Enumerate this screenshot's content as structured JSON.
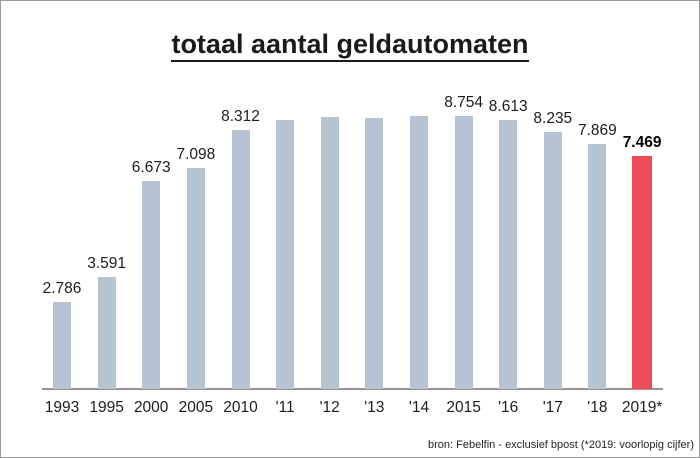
{
  "chart_data": {
    "type": "bar",
    "title": "totaal aantal geldautomaten",
    "categories": [
      "1993",
      "1995",
      "2000",
      "2005",
      "2010",
      "'11",
      "'12",
      "'13",
      "'14",
      "2015",
      "'16",
      "'17",
      "'18",
      "2019*"
    ],
    "values": [
      2786,
      3591,
      6673,
      7098,
      8312,
      8620,
      8720,
      8690,
      8740,
      8754,
      8613,
      8235,
      7869,
      7469
    ],
    "value_labels": [
      "2.786",
      "3.591",
      "6.673",
      "7.098",
      "8.312",
      "",
      "",
      "",
      "",
      "8.754",
      "8.613",
      "8.235",
      "7.869",
      "7.469"
    ],
    "highlighted_index": 13,
    "xlabel": "",
    "ylabel": "",
    "ylim": [
      0,
      9200
    ],
    "grid": false,
    "legend": false,
    "colors": {
      "bar": "#b5c3d2",
      "highlight_bar": "#ee4c59",
      "axis_line": "#949494",
      "title_text": "#1a1a1a"
    }
  },
  "footer": {
    "source_note": "bron: Febelfin - exclusief bpost (*2019: voorlopig cijfer)"
  }
}
